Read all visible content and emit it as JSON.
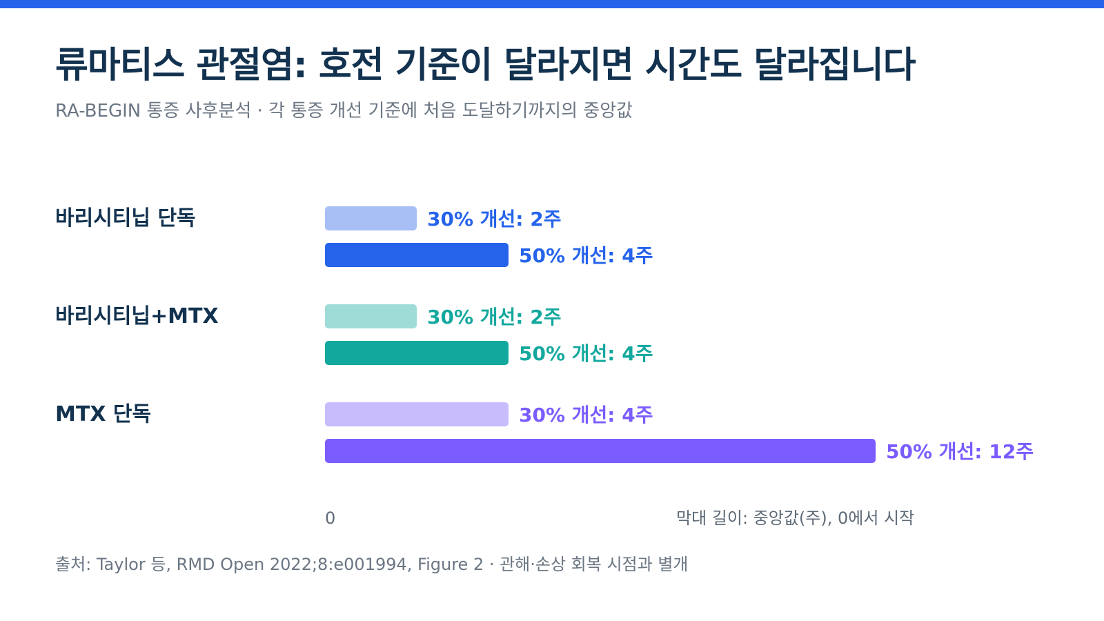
{
  "accent": "#2563eb",
  "header": {
    "title": "류마티스 관절염: 호전 기준이 달라지면 시간도 달라집니다",
    "subtitle": "RA-BEGIN 통증 사후분석 · 각 통증 개선 기준에 처음 도달하기까지의 중앙값"
  },
  "footer": {
    "source": "출처: Taylor 등, RMD Open 2022;8:e001994, Figure 2 · 관해·손상 회복 시점과 별개"
  },
  "chart_data": {
    "type": "bar",
    "orientation": "horizontal",
    "unit": "주",
    "categories": [
      "바리시티닙 단독",
      "바리시티닙+MTX",
      "MTX 단독"
    ],
    "series": [
      {
        "name": "30% 개선",
        "values": [
          2,
          2,
          4
        ],
        "colors": [
          "#a7bff5",
          "#9fdcd8",
          "#c9bcfd"
        ]
      },
      {
        "name": "50% 개선",
        "values": [
          4,
          4,
          12
        ],
        "colors": [
          "#2563eb",
          "#13a89e",
          "#7b5cff"
        ]
      }
    ],
    "label_colors": [
      "#2563eb",
      "#13a89e",
      "#7b5cff"
    ],
    "xlim": [
      0,
      12
    ],
    "x_tick_labels": [
      "0"
    ],
    "axis_note": "막대 길이: 중앙값(주), 0에서 시작"
  }
}
